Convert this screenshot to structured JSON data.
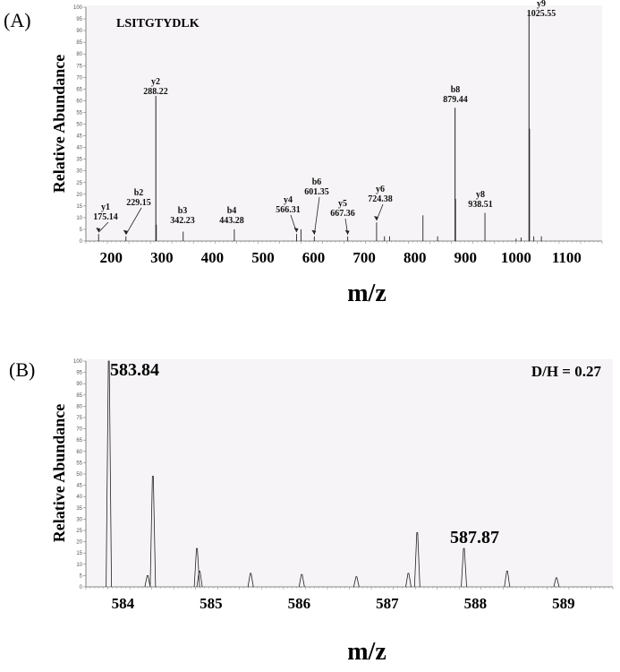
{
  "chart_data": [
    {
      "type": "bar",
      "panel_label": "(A)",
      "annotation": "LSITGTYDLK",
      "xlabel": "m/z",
      "ylabel": "Relative Abundance",
      "xlim": [
        150,
        1170
      ],
      "ylim": [
        0,
        100
      ],
      "x_ticks": [
        200,
        300,
        400,
        500,
        600,
        700,
        800,
        900,
        1000,
        1100
      ],
      "y_ticks": [
        0,
        5,
        10,
        15,
        20,
        25,
        30,
        35,
        40,
        45,
        50,
        55,
        60,
        65,
        70,
        75,
        80,
        85,
        90,
        95,
        100
      ],
      "peaks": [
        {
          "mz": 175.14,
          "y": 3,
          "ion": "y1",
          "label": "175.14"
        },
        {
          "mz": 229.15,
          "y": 2,
          "ion": "b2",
          "label": "229.15"
        },
        {
          "mz": 288.22,
          "y": 62,
          "ion": "y2",
          "label": "288.22"
        },
        {
          "mz": 289.2,
          "y": 7
        },
        {
          "mz": 342.23,
          "y": 4,
          "ion": "b3",
          "label": "342.23"
        },
        {
          "mz": 443.28,
          "y": 5,
          "ion": "b4",
          "label": "443.28"
        },
        {
          "mz": 566.31,
          "y": 3,
          "ion": "y4",
          "label": "566.31"
        },
        {
          "mz": 575,
          "y": 5
        },
        {
          "mz": 601.35,
          "y": 2,
          "ion": "b6",
          "label": "601.35"
        },
        {
          "mz": 667.36,
          "y": 2,
          "ion": "y5",
          "label": "667.36"
        },
        {
          "mz": 724.38,
          "y": 8,
          "ion": "y6",
          "label": "724.38"
        },
        {
          "mz": 740,
          "y": 2
        },
        {
          "mz": 750,
          "y": 2
        },
        {
          "mz": 816,
          "y": 11
        },
        {
          "mz": 845,
          "y": 2
        },
        {
          "mz": 879.44,
          "y": 57,
          "ion": "b8",
          "label": "879.44"
        },
        {
          "mz": 880.4,
          "y": 18
        },
        {
          "mz": 938.51,
          "y": 12,
          "ion": "y8",
          "label": "938.51"
        },
        {
          "mz": 1000,
          "y": 1
        },
        {
          "mz": 1010,
          "y": 1.5
        },
        {
          "mz": 1025.55,
          "y": 98,
          "ion": "y9",
          "label": "1025.55"
        },
        {
          "mz": 1026.5,
          "y": 48
        },
        {
          "mz": 1035,
          "y": 2
        },
        {
          "mz": 1050,
          "y": 2
        }
      ]
    },
    {
      "type": "line",
      "panel_label": "(B)",
      "annotation": "D/H = 0.27",
      "xlabel": "m/z",
      "ylabel": "Relative Abundance",
      "xlim": [
        583.58,
        589.56
      ],
      "ylim": [
        0,
        100
      ],
      "x_ticks": [
        584,
        585,
        586,
        587,
        588,
        589
      ],
      "y_ticks": [
        0,
        5,
        10,
        15,
        20,
        25,
        30,
        35,
        40,
        45,
        50,
        55,
        60,
        65,
        70,
        75,
        80,
        85,
        90,
        95,
        100
      ],
      "peak_labels": [
        {
          "mz": 583.84,
          "label": "583.84"
        },
        {
          "mz": 587.87,
          "label": "587.87"
        }
      ],
      "peaks": [
        {
          "mz": 583.84,
          "y": 100
        },
        {
          "mz": 584.28,
          "y": 5
        },
        {
          "mz": 584.34,
          "y": 49
        },
        {
          "mz": 584.84,
          "y": 17
        },
        {
          "mz": 584.87,
          "y": 7
        },
        {
          "mz": 585.45,
          "y": 6
        },
        {
          "mz": 586.03,
          "y": 5.5
        },
        {
          "mz": 586.65,
          "y": 4.5
        },
        {
          "mz": 587.24,
          "y": 6
        },
        {
          "mz": 587.34,
          "y": 24
        },
        {
          "mz": 587.87,
          "y": 17
        },
        {
          "mz": 588.36,
          "y": 7
        },
        {
          "mz": 588.92,
          "y": 4
        }
      ]
    }
  ]
}
